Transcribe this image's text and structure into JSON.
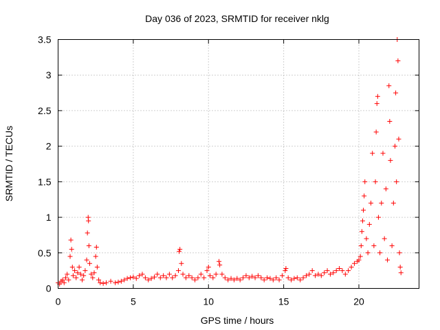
{
  "chart_data": {
    "type": "scatter",
    "title": "Day 036 of 2023, SRMTID for receiver nklg",
    "xlabel": "GPS time / hours",
    "ylabel": "SRMTID / TECUs",
    "xlim": [
      0,
      24
    ],
    "ylim": [
      0,
      3.5
    ],
    "x_ticks": [
      0,
      5,
      10,
      15,
      20
    ],
    "x_tick_labels": [
      "0",
      "5",
      "10",
      "15",
      "20"
    ],
    "y_ticks": [
      0,
      0.5,
      1,
      1.5,
      2,
      2.5,
      3,
      3.5
    ],
    "y_tick_labels": [
      "0",
      "0.5",
      "1",
      "1.5",
      "2",
      "2.5",
      "3",
      "3.5"
    ],
    "grid": true,
    "marker": "plus",
    "series": [
      {
        "name": "SRMTID",
        "color": "#ff0000",
        "points": [
          [
            0.0,
            0.08
          ],
          [
            0.1,
            0.06
          ],
          [
            0.2,
            0.1
          ],
          [
            0.3,
            0.12
          ],
          [
            0.4,
            0.08
          ],
          [
            0.5,
            0.15
          ],
          [
            0.6,
            0.2
          ],
          [
            0.7,
            0.12
          ],
          [
            0.8,
            0.45
          ],
          [
            0.85,
            0.68
          ],
          [
            0.9,
            0.55
          ],
          [
            0.95,
            0.3
          ],
          [
            1.0,
            0.18
          ],
          [
            1.1,
            0.25
          ],
          [
            1.2,
            0.15
          ],
          [
            1.3,
            0.22
          ],
          [
            1.4,
            0.3
          ],
          [
            1.5,
            0.2
          ],
          [
            1.6,
            0.12
          ],
          [
            1.7,
            0.18
          ],
          [
            1.8,
            0.25
          ],
          [
            1.9,
            0.4
          ],
          [
            1.95,
            0.78
          ],
          [
            2.0,
            1.0
          ],
          [
            2.02,
            0.95
          ],
          [
            2.05,
            0.6
          ],
          [
            2.1,
            0.35
          ],
          [
            2.2,
            0.2
          ],
          [
            2.3,
            0.15
          ],
          [
            2.4,
            0.22
          ],
          [
            2.5,
            0.45
          ],
          [
            2.55,
            0.58
          ],
          [
            2.6,
            0.3
          ],
          [
            2.7,
            0.12
          ],
          [
            2.8,
            0.08
          ],
          [
            3.0,
            0.07
          ],
          [
            3.2,
            0.08
          ],
          [
            3.5,
            0.1
          ],
          [
            3.8,
            0.08
          ],
          [
            4.0,
            0.09
          ],
          [
            4.2,
            0.1
          ],
          [
            4.4,
            0.12
          ],
          [
            4.6,
            0.14
          ],
          [
            4.8,
            0.15
          ],
          [
            5.0,
            0.16
          ],
          [
            5.2,
            0.14
          ],
          [
            5.4,
            0.18
          ],
          [
            5.6,
            0.2
          ],
          [
            5.8,
            0.15
          ],
          [
            6.0,
            0.12
          ],
          [
            6.2,
            0.14
          ],
          [
            6.4,
            0.16
          ],
          [
            6.6,
            0.2
          ],
          [
            6.8,
            0.15
          ],
          [
            7.0,
            0.18
          ],
          [
            7.2,
            0.15
          ],
          [
            7.4,
            0.2
          ],
          [
            7.6,
            0.15
          ],
          [
            7.8,
            0.18
          ],
          [
            8.0,
            0.25
          ],
          [
            8.05,
            0.52
          ],
          [
            8.1,
            0.55
          ],
          [
            8.2,
            0.35
          ],
          [
            8.3,
            0.2
          ],
          [
            8.5,
            0.15
          ],
          [
            8.7,
            0.18
          ],
          [
            8.9,
            0.15
          ],
          [
            9.1,
            0.12
          ],
          [
            9.3,
            0.15
          ],
          [
            9.5,
            0.2
          ],
          [
            9.7,
            0.15
          ],
          [
            9.9,
            0.25
          ],
          [
            10.0,
            0.3
          ],
          [
            10.1,
            0.18
          ],
          [
            10.3,
            0.15
          ],
          [
            10.5,
            0.2
          ],
          [
            10.7,
            0.38
          ],
          [
            10.75,
            0.33
          ],
          [
            10.9,
            0.2
          ],
          [
            11.1,
            0.15
          ],
          [
            11.3,
            0.12
          ],
          [
            11.5,
            0.14
          ],
          [
            11.7,
            0.12
          ],
          [
            11.9,
            0.14
          ],
          [
            12.1,
            0.12
          ],
          [
            12.3,
            0.15
          ],
          [
            12.5,
            0.18
          ],
          [
            12.7,
            0.15
          ],
          [
            12.9,
            0.17
          ],
          [
            13.1,
            0.15
          ],
          [
            13.3,
            0.18
          ],
          [
            13.5,
            0.15
          ],
          [
            13.7,
            0.12
          ],
          [
            13.9,
            0.15
          ],
          [
            14.1,
            0.14
          ],
          [
            14.3,
            0.12
          ],
          [
            14.5,
            0.15
          ],
          [
            14.7,
            0.12
          ],
          [
            14.9,
            0.18
          ],
          [
            15.1,
            0.25
          ],
          [
            15.15,
            0.28
          ],
          [
            15.3,
            0.15
          ],
          [
            15.5,
            0.12
          ],
          [
            15.7,
            0.14
          ],
          [
            15.9,
            0.15
          ],
          [
            16.1,
            0.12
          ],
          [
            16.3,
            0.15
          ],
          [
            16.5,
            0.18
          ],
          [
            16.7,
            0.2
          ],
          [
            16.9,
            0.25
          ],
          [
            17.1,
            0.18
          ],
          [
            17.3,
            0.2
          ],
          [
            17.5,
            0.18
          ],
          [
            17.7,
            0.22
          ],
          [
            17.9,
            0.25
          ],
          [
            18.1,
            0.2
          ],
          [
            18.3,
            0.22
          ],
          [
            18.5,
            0.25
          ],
          [
            18.7,
            0.28
          ],
          [
            18.9,
            0.25
          ],
          [
            19.1,
            0.2
          ],
          [
            19.3,
            0.25
          ],
          [
            19.5,
            0.3
          ],
          [
            19.7,
            0.35
          ],
          [
            19.9,
            0.38
          ],
          [
            20.0,
            0.4
          ],
          [
            20.1,
            0.45
          ],
          [
            20.15,
            0.6
          ],
          [
            20.2,
            0.8
          ],
          [
            20.25,
            0.95
          ],
          [
            20.3,
            1.1
          ],
          [
            20.35,
            1.3
          ],
          [
            20.4,
            1.5
          ],
          [
            20.5,
            0.7
          ],
          [
            20.6,
            0.5
          ],
          [
            20.7,
            0.9
          ],
          [
            20.8,
            1.2
          ],
          [
            20.9,
            1.9
          ],
          [
            21.0,
            0.6
          ],
          [
            21.1,
            1.5
          ],
          [
            21.15,
            2.2
          ],
          [
            21.2,
            2.6
          ],
          [
            21.25,
            2.7
          ],
          [
            21.3,
            1.0
          ],
          [
            21.4,
            0.5
          ],
          [
            21.5,
            1.2
          ],
          [
            21.6,
            1.9
          ],
          [
            21.7,
            0.7
          ],
          [
            21.8,
            1.4
          ],
          [
            21.9,
            0.4
          ],
          [
            22.0,
            2.85
          ],
          [
            22.05,
            2.35
          ],
          [
            22.1,
            1.8
          ],
          [
            22.2,
            0.6
          ],
          [
            22.3,
            1.2
          ],
          [
            22.4,
            2.0
          ],
          [
            22.45,
            2.75
          ],
          [
            22.5,
            1.5
          ],
          [
            22.55,
            3.5
          ],
          [
            22.6,
            3.2
          ],
          [
            22.65,
            2.1
          ],
          [
            22.7,
            0.5
          ],
          [
            22.75,
            0.3
          ],
          [
            22.8,
            0.22
          ]
        ]
      }
    ]
  }
}
